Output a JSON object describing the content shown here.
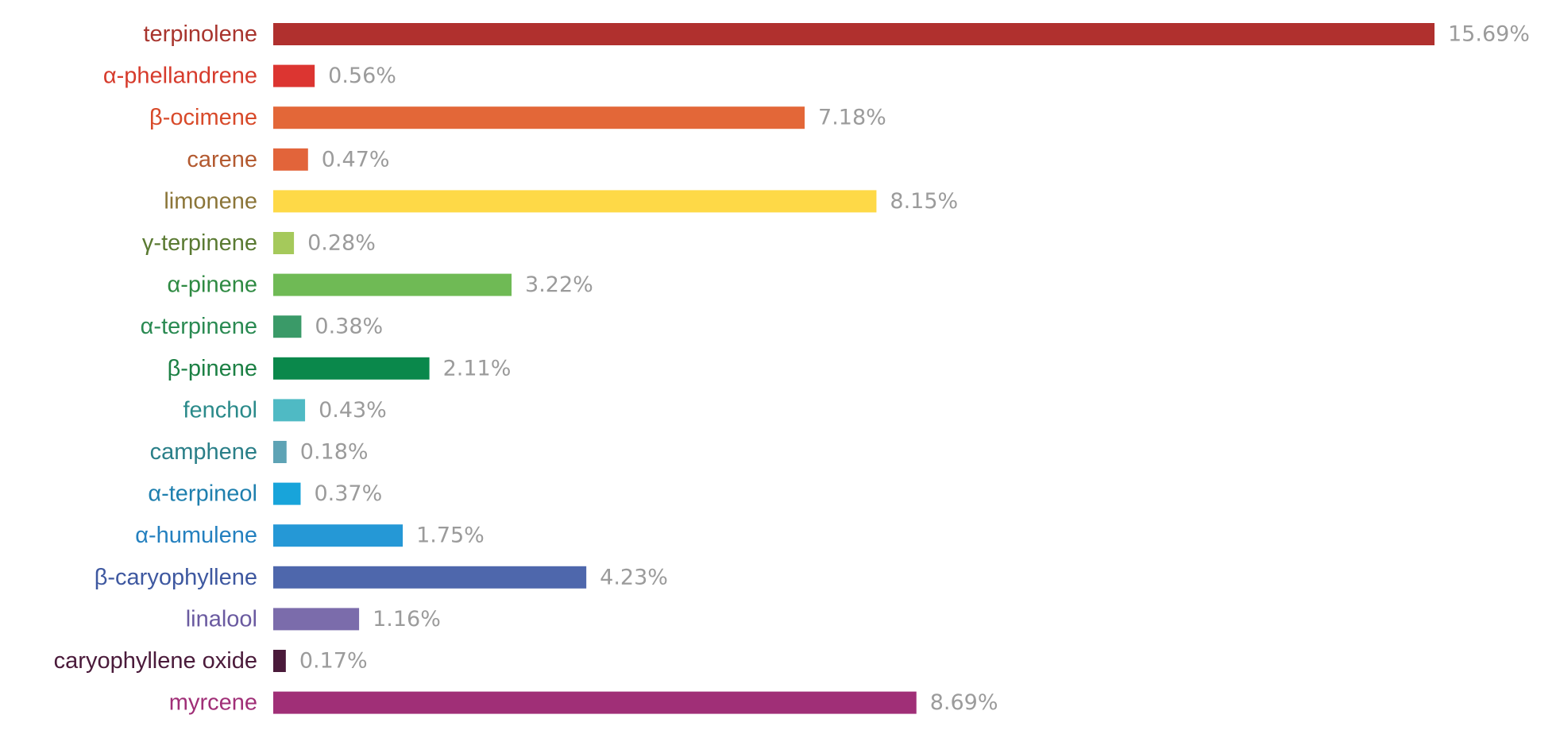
{
  "chart_data": {
    "type": "bar",
    "orientation": "horizontal",
    "title": "",
    "xlabel": "",
    "ylabel": "",
    "grid": false,
    "xlim": [
      0,
      15.69
    ],
    "categories": [
      "terpinolene",
      "α-phellandrene",
      "β-ocimene",
      "carene",
      "limonene",
      "γ-terpinene",
      "α-pinene",
      "α-terpinene",
      "β-pinene",
      "fenchol",
      "camphene",
      "α-terpineol",
      "α-humulene",
      "β-caryophyllene",
      "linalool",
      "caryophyllene oxide",
      "myrcene"
    ],
    "values": [
      15.69,
      0.56,
      7.18,
      0.47,
      8.15,
      0.28,
      3.22,
      0.38,
      2.11,
      0.43,
      0.18,
      0.37,
      1.75,
      4.23,
      1.16,
      0.17,
      8.69
    ],
    "value_labels": [
      "15.69%",
      "0.56%",
      "7.18%",
      "0.47%",
      "8.15%",
      "0.28%",
      "3.22%",
      "0.38%",
      "2.11%",
      "0.43%",
      "0.18%",
      "0.37%",
      "1.75%",
      "4.23%",
      "1.16%",
      "0.17%",
      "8.69%"
    ],
    "bar_colors": [
      "#b0302e",
      "#dc3531",
      "#e36738",
      "#e2643a",
      "#fed947",
      "#a5c95b",
      "#6fba55",
      "#3a9a68",
      "#0a884b",
      "#4fbac4",
      "#5ea3b5",
      "#18a4da",
      "#2598d6",
      "#4e67ac",
      "#7b6cab",
      "#4a1a3a",
      "#a02f77"
    ],
    "label_colors": [
      "#a8352e",
      "#d63b2c",
      "#d84a2a",
      "#b35a30",
      "#8b7538",
      "#5a7a32",
      "#2e8a42",
      "#2a8a52",
      "#1c8044",
      "#2a8a8a",
      "#2a7f88",
      "#1e7fae",
      "#2480bf",
      "#3e58a0",
      "#6a5aa0",
      "#4a1a3a",
      "#a02f77"
    ],
    "value_label_color": "#9b9b9b"
  }
}
